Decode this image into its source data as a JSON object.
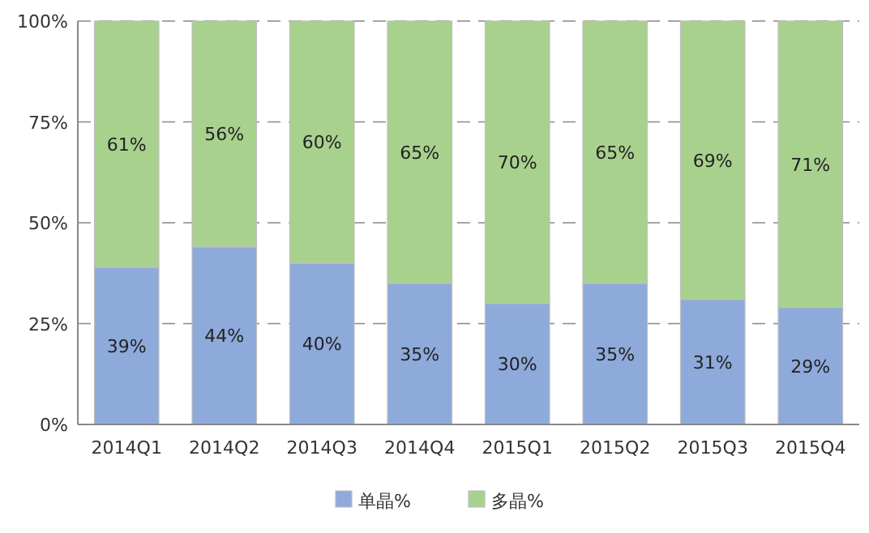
{
  "chart_data": {
    "type": "bar",
    "stacked": true,
    "categories": [
      "2014Q1",
      "2014Q2",
      "2014Q3",
      "2014Q4",
      "2015Q1",
      "2015Q2",
      "2015Q3",
      "2015Q4"
    ],
    "series": [
      {
        "name": "单晶%",
        "color": "#8eaadb",
        "values": [
          39,
          44,
          40,
          35,
          30,
          35,
          31,
          29
        ],
        "value_labels": [
          "39%",
          "44%",
          "40%",
          "35%",
          "30%",
          "35%",
          "31%",
          "29%"
        ]
      },
      {
        "name": "多晶%",
        "color": "#a9d18e",
        "values": [
          61,
          56,
          60,
          65,
          70,
          65,
          69,
          71
        ],
        "value_labels": [
          "61%",
          "56%",
          "60%",
          "65%",
          "70%",
          "65%",
          "69%",
          "71%"
        ]
      }
    ],
    "ylim": [
      0,
      100
    ],
    "yticks": [
      {
        "value": 0,
        "label": "0%"
      },
      {
        "value": 25,
        "label": "25%"
      },
      {
        "value": 50,
        "label": "50%"
      },
      {
        "value": 75,
        "label": "75%"
      },
      {
        "value": 100,
        "label": "100%"
      }
    ],
    "grid": "y",
    "legend": "bottom"
  }
}
